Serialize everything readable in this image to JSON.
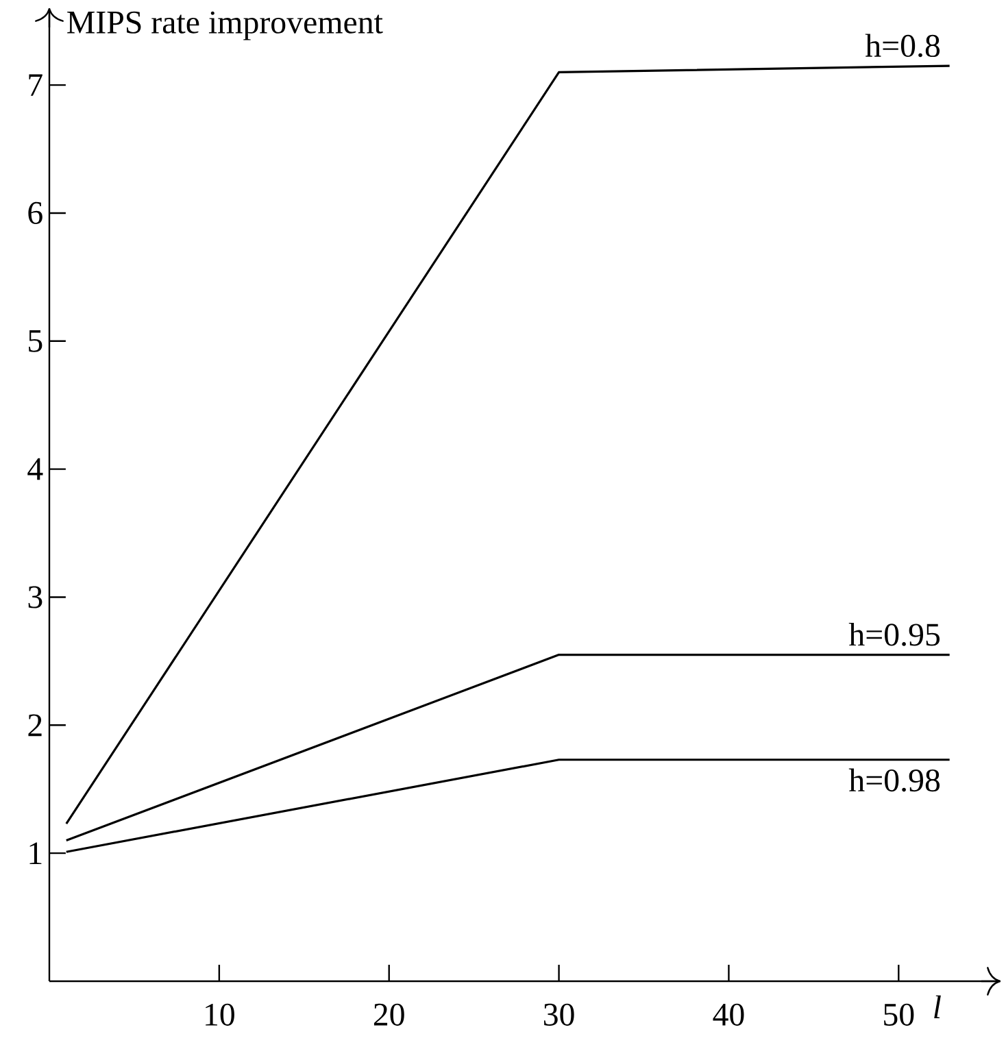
{
  "chart_data": {
    "type": "line",
    "xlabel": "l",
    "ylabel": "MIPS rate improvement",
    "xlim": [
      0,
      56
    ],
    "ylim": [
      0,
      7.6
    ],
    "xticks": [
      10,
      20,
      30,
      40,
      50
    ],
    "yticks": [
      1,
      2,
      3,
      4,
      5,
      6,
      7
    ],
    "grid": false,
    "legend": false,
    "marker": "none",
    "line_style": "solid",
    "series": [
      {
        "name": "h=0.8",
        "color": "#000000",
        "x": [
          1,
          30,
          53
        ],
        "values": [
          1.23,
          7.1,
          7.15
        ]
      },
      {
        "name": "h=0.95",
        "color": "#000000",
        "x": [
          1,
          30,
          53
        ],
        "values": [
          1.1,
          2.55,
          2.55
        ]
      },
      {
        "name": "h=0.98",
        "color": "#000000",
        "x": [
          1,
          30,
          53
        ],
        "values": [
          1.01,
          1.73,
          1.73
        ]
      }
    ]
  }
}
